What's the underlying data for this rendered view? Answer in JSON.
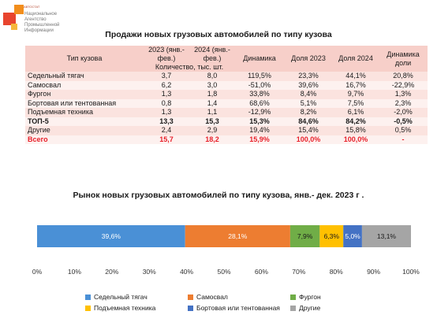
{
  "logo": {
    "tag": "АВТОСТАТ",
    "lines": [
      "Национальное",
      "Агентство",
      "Промышленной",
      "Информации"
    ]
  },
  "table": {
    "title": "Продажи новых грузовых автомобилей по типу кузова",
    "header": {
      "type": "Тип кузова",
      "y2023": "2023 (янв.- фев.)",
      "y2024": "2024 (янв.- фев.)",
      "units": "Количество, тыс. шт.",
      "dynamics": "Динамика",
      "share2023": "Доля 2023",
      "share2024": "Доля 2024",
      "share_dynamics": "Динамика доли"
    },
    "rows": [
      {
        "type": "Седельный тягач",
        "v2023": "3,7",
        "v2024": "8,0",
        "dyn": "119,5%",
        "s2023": "23,3%",
        "s2024": "44,1%",
        "sdyn": "20,8%"
      },
      {
        "type": "Самосвал",
        "v2023": "6,2",
        "v2024": "3,0",
        "dyn": "-51,0%",
        "s2023": "39,6%",
        "s2024": "16,7%",
        "sdyn": "-22,9%"
      },
      {
        "type": "Фургон",
        "v2023": "1,3",
        "v2024": "1,8",
        "dyn": "33,8%",
        "s2023": "8,4%",
        "s2024": "9,7%",
        "sdyn": "1,3%"
      },
      {
        "type": "Бортовая или тентованная",
        "v2023": "0,8",
        "v2024": "1,4",
        "dyn": "68,6%",
        "s2023": "5,1%",
        "s2024": "7,5%",
        "sdyn": "2,3%"
      },
      {
        "type": "Подъемная техника",
        "v2023": "1,3",
        "v2024": "1,1",
        "dyn": "-12,9%",
        "s2023": "8,2%",
        "s2024": "6,1%",
        "sdyn": "-2,0%"
      },
      {
        "type": "ТОП-5",
        "v2023": "13,3",
        "v2024": "15,3",
        "dyn": "15,3%",
        "s2023": "84,6%",
        "s2024": "84,2%",
        "sdyn": "-0,5%"
      },
      {
        "type": "Другие",
        "v2023": "2,4",
        "v2024": "2,9",
        "dyn": "19,4%",
        "s2023": "15,4%",
        "s2024": "15,8%",
        "sdyn": "0,5%"
      },
      {
        "type": "Всего",
        "v2023": "15,7",
        "v2024": "18,2",
        "dyn": "15,9%",
        "s2023": "100,0%",
        "s2024": "100,0%",
        "sdyn": "-"
      }
    ]
  },
  "chart_data": {
    "type": "bar",
    "orientation": "horizontal-stacked-100",
    "title": "Рынок новых грузовых автомобилей по типу кузова, янв.- дек. 2023 г .",
    "series": [
      {
        "name": "Седельный тягач",
        "value": 39.6,
        "label": "39,6%",
        "color": "#4a90d6"
      },
      {
        "name": "Самосвал",
        "value": 28.1,
        "label": "28,1%",
        "color": "#ed7d31"
      },
      {
        "name": "Фургон",
        "value": 7.9,
        "label": "7,9%",
        "color": "#70ad47"
      },
      {
        "name": "Подъемная техника",
        "value": 6.3,
        "label": "6,3%",
        "color": "#ffc000"
      },
      {
        "name": "Бортовая или тентованная",
        "value": 5.0,
        "label": "5,0%",
        "color": "#4472c4"
      },
      {
        "name": "Другие",
        "value": 13.1,
        "label": "13,1%",
        "color": "#a5a5a5"
      }
    ],
    "xlim": [
      0,
      100
    ],
    "ticks": [
      "0%",
      "10%",
      "20%",
      "30%",
      "40%",
      "50%",
      "60%",
      "70%",
      "80%",
      "90%",
      "100%"
    ],
    "grid": false,
    "legend_position": "bottom"
  }
}
